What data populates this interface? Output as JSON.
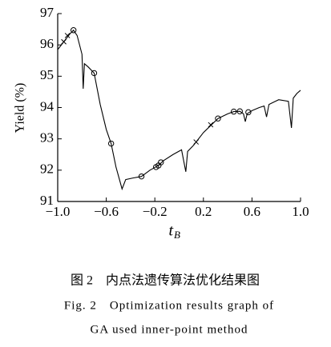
{
  "chart_data": {
    "type": "line",
    "ylabel": "Yield (%)",
    "xlabel": "t",
    "xlabel_sub": "B",
    "color": "#000000",
    "x": [
      -1.0,
      -0.95,
      -0.9,
      -0.87,
      -0.84,
      -0.8,
      -0.79,
      -0.78,
      -0.75,
      -0.7,
      -0.65,
      -0.6,
      -0.56,
      -0.52,
      -0.47,
      -0.44,
      -0.38,
      -0.31,
      -0.24,
      -0.17,
      -0.13,
      -0.05,
      0.02,
      0.055,
      0.07,
      0.12,
      0.2,
      0.32,
      0.4,
      0.45,
      0.5,
      0.53,
      0.545,
      0.56,
      0.6,
      0.66,
      0.7,
      0.72,
      0.74,
      0.82,
      0.9,
      0.925,
      0.94,
      0.97,
      1.0
    ],
    "values": [
      95.85,
      96.1,
      96.35,
      96.47,
      96.3,
      95.7,
      94.6,
      95.4,
      95.3,
      95.1,
      94.1,
      93.3,
      92.85,
      92.1,
      91.4,
      91.7,
      91.75,
      91.8,
      92.0,
      92.15,
      92.3,
      92.5,
      92.65,
      91.95,
      92.6,
      92.8,
      93.2,
      93.65,
      93.8,
      93.87,
      93.88,
      93.8,
      93.55,
      93.8,
      93.9,
      94.0,
      94.05,
      93.7,
      94.1,
      94.25,
      94.2,
      93.35,
      94.3,
      94.45,
      94.55
    ],
    "circle_markers": {
      "x": [
        -0.87,
        -0.7,
        -0.56,
        -0.31,
        -0.19,
        -0.17,
        -0.15,
        0.32,
        0.45,
        0.5,
        0.57
      ],
      "values": [
        96.47,
        95.1,
        92.85,
        91.8,
        92.1,
        92.15,
        92.25,
        93.65,
        93.87,
        93.88,
        93.85
      ]
    },
    "cross_markers": {
      "x": [
        -0.95,
        -0.92,
        0.14,
        0.26
      ],
      "values": [
        96.1,
        96.3,
        92.9,
        93.45
      ]
    },
    "xlim": [
      -1.0,
      1.0
    ],
    "ylim": [
      91,
      97
    ],
    "xticks": [
      {
        "value": -1.0,
        "label": "−1.0"
      },
      {
        "value": -0.6,
        "label": "−0.6"
      },
      {
        "value": -0.2,
        "label": "−0.2"
      },
      0.2,
      0.6,
      {
        "value": 1.0,
        "label": "1.0"
      }
    ],
    "yticks": [
      91,
      92,
      93,
      94,
      95,
      96,
      97
    ]
  },
  "caption": {
    "zh": "图 2　内点法遗传算法优化结果图",
    "en": [
      "Fig. 2　Optimization results graph of",
      "GA used inner-point method"
    ]
  }
}
